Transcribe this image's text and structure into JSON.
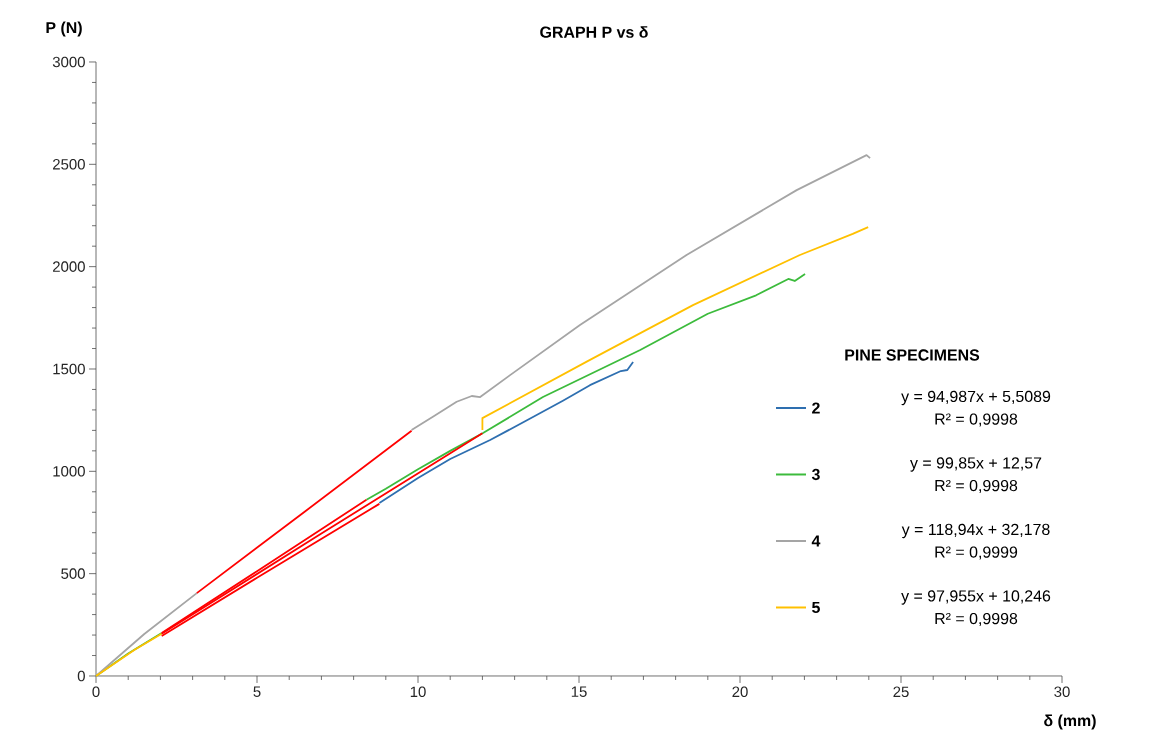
{
  "chart_data": {
    "type": "line",
    "title": "GRAPH P vs δ",
    "xlabel": "δ (mm)",
    "ylabel": "P (N)",
    "legend_title": "PINE SPECIMENS",
    "xlim": [
      0,
      30
    ],
    "ylim": [
      0,
      3000
    ],
    "xticks": [
      0,
      5,
      10,
      15,
      20,
      25,
      30
    ],
    "yticks": [
      0,
      500,
      1000,
      1500,
      2000,
      2500,
      3000
    ],
    "grid": false,
    "legend": "right",
    "marker": "none",
    "line_style": "solid",
    "series": [
      {
        "name": "2",
        "color": "#2e6fb0",
        "x": [
          8.8,
          10,
          11,
          12.24,
          13.57,
          14.5,
          15.34,
          16.3,
          16.5,
          16.68
        ],
        "values": [
          845,
          967,
          1060,
          1153,
          1265,
          1345,
          1421,
          1490,
          1495,
          1534
        ]
      },
      {
        "name": "3",
        "color": "#3cbb3c",
        "x": [
          0,
          1,
          2.04,
          5,
          8.4,
          9,
          10,
          11,
          12.02,
          13.88,
          16.9,
          19,
          20.5,
          21.5,
          21.7,
          22.02
        ],
        "values": [
          0,
          110,
          210,
          null,
          861,
          915,
          1010,
          1100,
          1187,
          1363,
          1593,
          1770,
          1860,
          1940,
          1930,
          1964
        ]
      },
      {
        "name": "4",
        "color": "#a5a5a5",
        "x": [
          0,
          1.5,
          3.13,
          6.5,
          9.8,
          10.5,
          11.2,
          11.67,
          11.93,
          12.86,
          15.03,
          18.34,
          21.76,
          23.93,
          24.04
        ],
        "values": [
          0,
          205,
          405,
          null,
          1202,
          1270,
          1340,
          1368,
          1363,
          1470,
          1715,
          2057,
          2374,
          2545,
          2530
        ]
      },
      {
        "name": "5",
        "color": "#ffc000",
        "x": [
          0,
          1.2,
          2.04,
          7,
          12,
          12,
          15.24,
          18.54,
          21.86,
          23.5,
          23.98
        ],
        "values": [
          0,
          128,
          206,
          null,
          1202,
          1260,
          1536,
          1812,
          2057,
          2160,
          2193
        ]
      },
      {
        "type": "line",
        "color": "#ff0000",
        "x": [
          2.04,
          5,
          8.8
        ],
        "values": [
          195,
          480,
          841
        ]
      },
      {
        "type": "line",
        "color": "#ff0000",
        "x": [
          2.04,
          5,
          8.4
        ],
        "values": [
          210,
          512,
          861
        ]
      },
      {
        "type": "line",
        "color": "#ff0000",
        "x": [
          3.13,
          6.5,
          9.8
        ],
        "values": [
          405,
          805,
          1198
        ]
      },
      {
        "type": "line",
        "color": "#ff0000",
        "x": [
          2.04,
          7,
          12
        ],
        "values": [
          206,
          696,
          1186
        ]
      }
    ],
    "annotations": [
      "y = 94,987x + 5,5089",
      "R² = 0,9998",
      "y = 99,85x + 12,57",
      "R² = 0,9998",
      "y = 118,94x + 32,178",
      "R² = 0,9999",
      "y = 97,955x + 10,246",
      "R² = 0,9998"
    ]
  }
}
